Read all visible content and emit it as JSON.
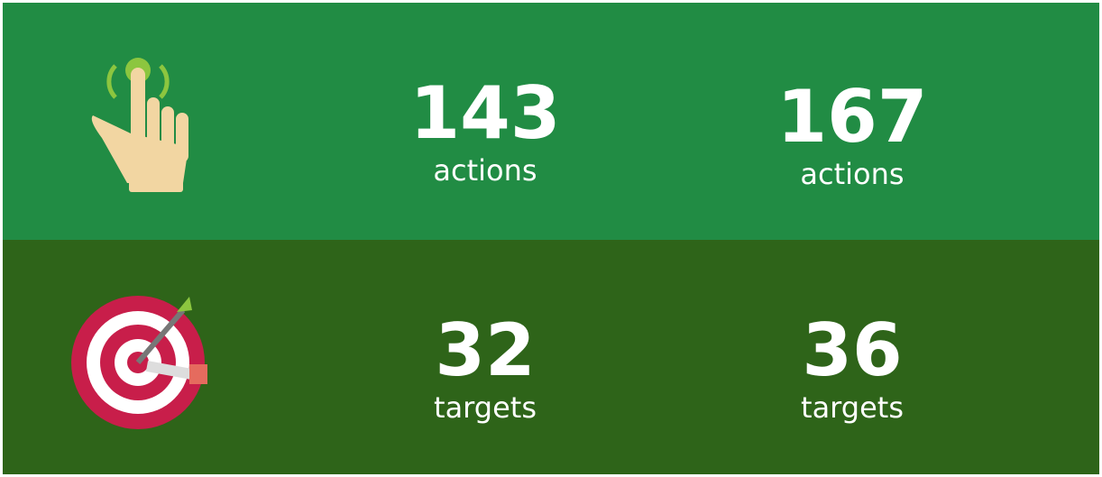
{
  "rows": [
    {
      "stats": [
        {
          "value": "143",
          "label": "actions"
        },
        {
          "value": "167",
          "label": "actions"
        }
      ]
    },
    {
      "stats": [
        {
          "value": "32",
          "label": "targets"
        },
        {
          "value": "36",
          "label": "targets"
        }
      ]
    }
  ]
}
